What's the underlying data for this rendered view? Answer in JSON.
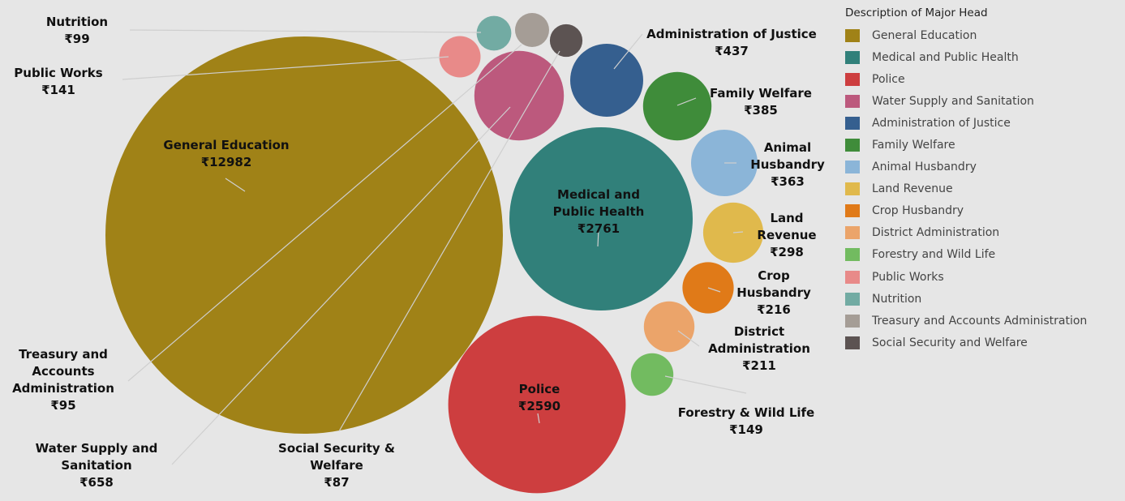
{
  "legend": {
    "title": "Description  of Major Head"
  },
  "chart_data": {
    "type": "bubble",
    "currency": "₹",
    "series": [
      {
        "name": "General Education",
        "value": 12982,
        "color": "#a08217",
        "label": [
          "General Education",
          "₹12982"
        ]
      },
      {
        "name": "Medical and Public Health",
        "value": 2761,
        "color": "#31807a",
        "label": [
          "Medical and",
          "Public Health",
          "₹2761"
        ]
      },
      {
        "name": "Police",
        "value": 2590,
        "color": "#cd3e3f",
        "label": [
          "Police",
          "₹2590"
        ]
      },
      {
        "name": "Water Supply and Sanitation",
        "value": 658,
        "color": "#bc597d",
        "label": [
          "Water Supply and",
          "Sanitation",
          "₹658"
        ]
      },
      {
        "name": "Administration of Justice",
        "value": 437,
        "color": "#355f8f",
        "label": [
          "Administration of Justice",
          "₹437"
        ]
      },
      {
        "name": "Family Welfare",
        "value": 385,
        "color": "#3f8c3a",
        "label": [
          "Family Welfare",
          "₹385"
        ]
      },
      {
        "name": "Animal Husbandry",
        "value": 363,
        "color": "#8bb5d8",
        "label": [
          "Animal",
          "Husbandry",
          "₹363"
        ]
      },
      {
        "name": "Land Revenue",
        "value": 298,
        "color": "#e0b94c",
        "label": [
          "Land",
          "Revenue",
          "₹298"
        ]
      },
      {
        "name": "Crop Husbandry",
        "value": 216,
        "color": "#e07a18",
        "label": [
          "Crop",
          "Husbandry",
          "₹216"
        ]
      },
      {
        "name": "District Administration",
        "value": 211,
        "color": "#eba46a",
        "label": [
          "District",
          "Administration",
          "₹211"
        ]
      },
      {
        "name": "Forestry and Wild Life",
        "value": 149,
        "color": "#72bb60",
        "label": [
          "Forestry & Wild Life",
          "₹149"
        ]
      },
      {
        "name": "Public Works",
        "value": 141,
        "color": "#e88a89",
        "label": [
          "Public Works",
          "₹141"
        ]
      },
      {
        "name": "Nutrition",
        "value": 99,
        "color": "#72aba3",
        "label": [
          "Nutrition",
          "₹99"
        ]
      },
      {
        "name": "Treasury and Accounts Administration",
        "value": 95,
        "color": "#a59d96",
        "label": [
          "Treasury and",
          "Accounts",
          "Administration",
          "₹95"
        ]
      },
      {
        "name": "Social Security and Welfare",
        "value": 87,
        "color": "#5c5352",
        "label": [
          "Social Security &",
          "Welfare",
          "₹87"
        ]
      }
    ]
  }
}
